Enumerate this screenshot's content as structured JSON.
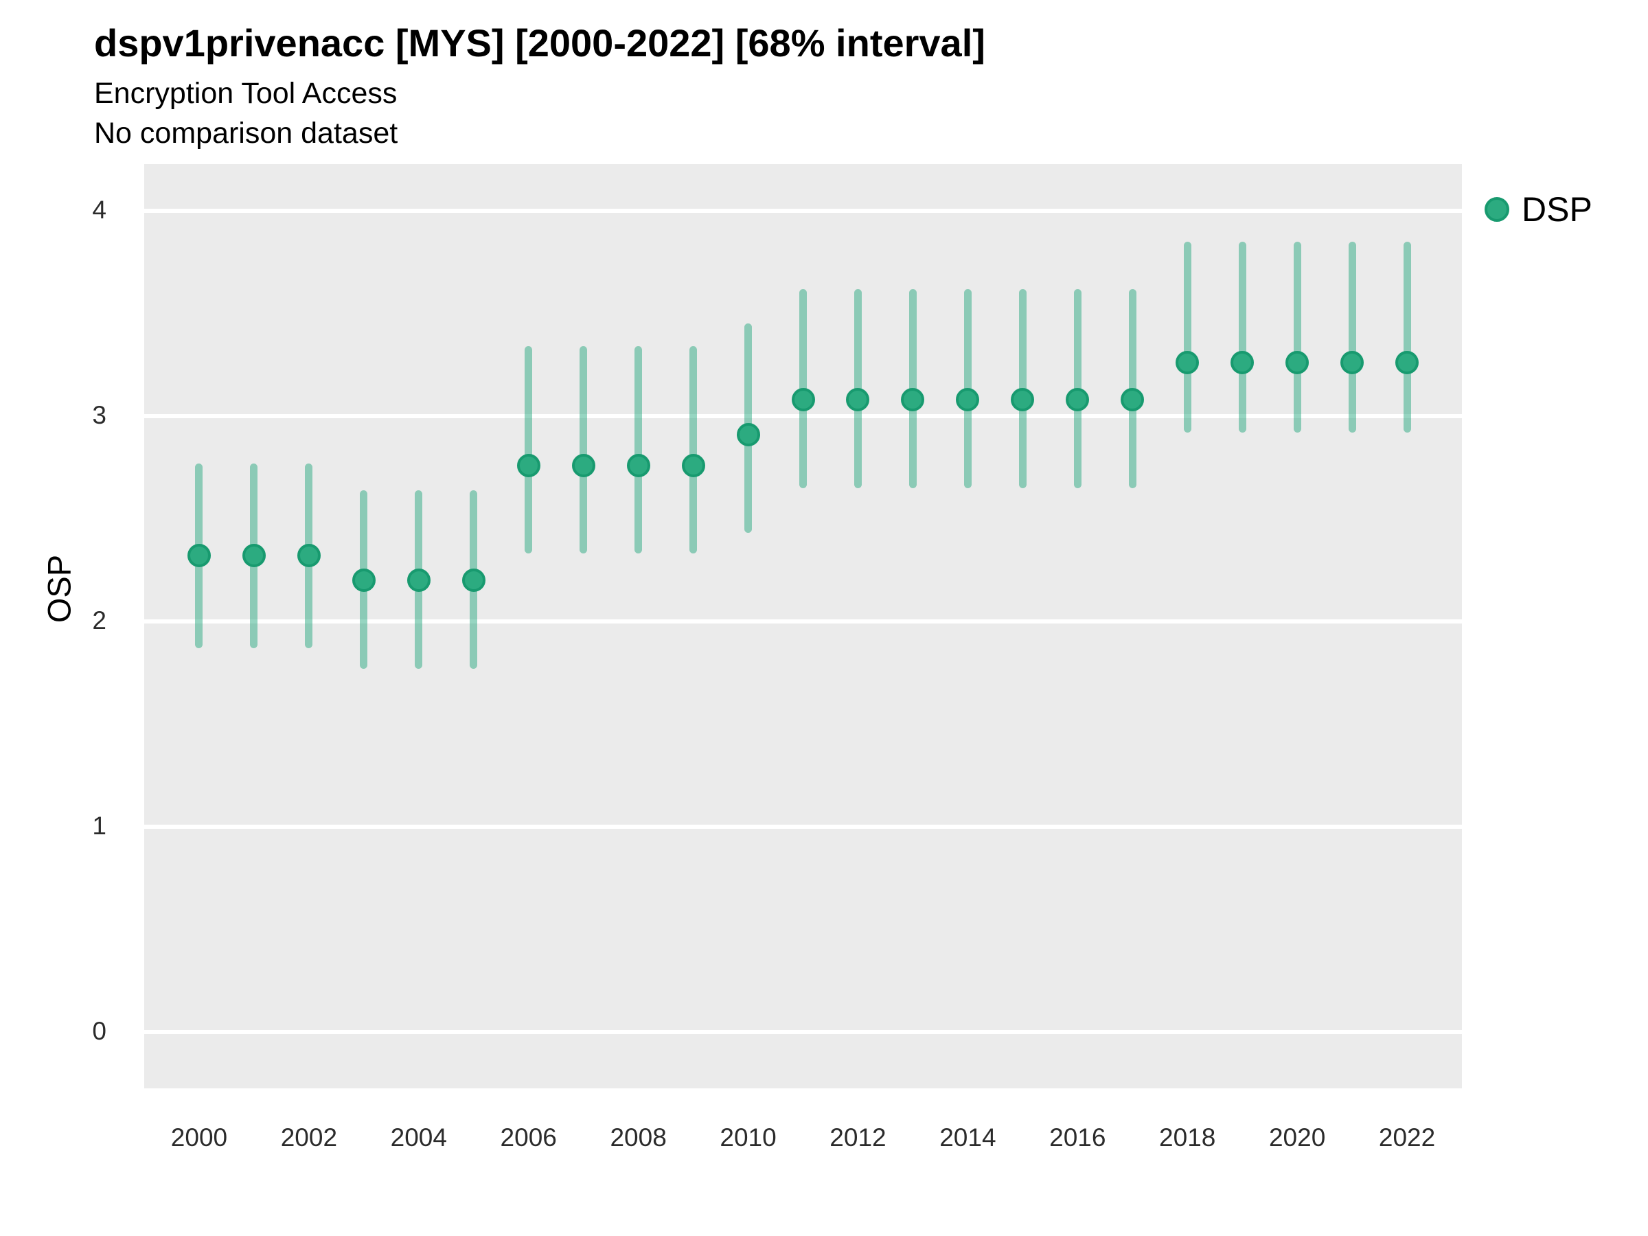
{
  "header": {
    "title": "dspv1privenacc [MYS] [2000-2022] [68% interval]",
    "subtitle1": "Encryption Tool Access",
    "subtitle2": "No comparison dataset"
  },
  "legend": {
    "label": "DSP"
  },
  "axes": {
    "y_label": "OSP",
    "y_ticks": [
      0,
      1,
      2,
      3,
      4
    ],
    "x_ticks": [
      2000,
      2002,
      2004,
      2006,
      2008,
      2010,
      2012,
      2014,
      2016,
      2018,
      2020,
      2022
    ]
  },
  "colors": {
    "panel_bg": "#EBEBEB",
    "gridline": "#FFFFFF",
    "point_fill": "#2CAB80",
    "point_stroke": "#189A6F",
    "interval_bar": "rgba(32,166,123,0.47)",
    "text": "#000000",
    "tick_text": "#2b2b2b"
  },
  "chart_data": {
    "type": "scatter",
    "subtype": "pointrange",
    "title": "dspv1privenacc [MYS] [2000-2022] [68% interval]",
    "subtitle": "Encryption Tool Access",
    "note": "No comparison dataset",
    "interval_level": "68%",
    "x": [
      2000,
      2001,
      2002,
      2003,
      2004,
      2005,
      2006,
      2007,
      2008,
      2009,
      2010,
      2011,
      2012,
      2013,
      2014,
      2015,
      2016,
      2017,
      2018,
      2019,
      2020,
      2021,
      2022
    ],
    "series": [
      {
        "name": "DSP",
        "values": [
          2.32,
          2.32,
          2.32,
          2.2,
          2.2,
          2.2,
          2.76,
          2.76,
          2.76,
          2.76,
          2.91,
          3.08,
          3.08,
          3.08,
          3.08,
          3.08,
          3.08,
          3.08,
          3.26,
          3.26,
          3.26,
          3.26,
          3.26
        ],
        "low": [
          1.87,
          1.87,
          1.87,
          1.77,
          1.77,
          1.77,
          2.33,
          2.33,
          2.33,
          2.33,
          2.43,
          2.65,
          2.65,
          2.65,
          2.65,
          2.65,
          2.65,
          2.65,
          2.92,
          2.92,
          2.92,
          2.92,
          2.92
        ],
        "high": [
          2.77,
          2.77,
          2.77,
          2.64,
          2.64,
          2.64,
          3.34,
          3.34,
          3.34,
          3.34,
          3.45,
          3.62,
          3.62,
          3.62,
          3.62,
          3.62,
          3.62,
          3.62,
          3.85,
          3.85,
          3.85,
          3.85,
          3.85
        ]
      }
    ],
    "xlabel": "",
    "ylabel": "OSP",
    "ylim": [
      -0.274,
      4.227
    ],
    "xlim": [
      1999.0,
      2023.0
    ],
    "grid": "major-horizontal-only",
    "legend_position": "right-top"
  }
}
